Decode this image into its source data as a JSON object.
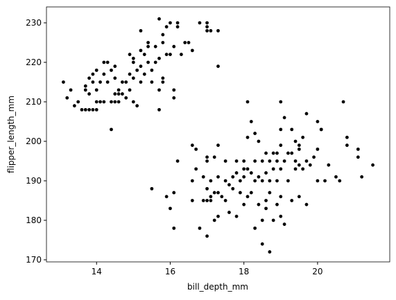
{
  "chart_data": {
    "type": "scatter",
    "xlabel": "bill_depth_mm",
    "ylabel": "flipper_length_mm",
    "color": "#000000",
    "x": [
      13.1,
      13.2,
      13.3,
      13.4,
      13.5,
      13.6,
      13.7,
      13.7,
      13.7,
      13.8,
      13.8,
      13.8,
      13.9,
      13.9,
      13.9,
      14.0,
      14.0,
      14.0,
      14.0,
      14.1,
      14.1,
      14.2,
      14.2,
      14.2,
      14.3,
      14.3,
      14.4,
      14.4,
      14.4,
      14.5,
      14.5,
      14.5,
      14.5,
      14.6,
      14.6,
      14.7,
      14.8,
      14.8,
      14.9,
      15.0,
      15.0,
      15.0,
      15.0,
      14.9,
      15.1,
      15.2,
      15.2,
      15.2,
      15.3,
      15.3,
      15.4,
      15.4,
      15.5,
      15.5,
      15.6,
      15.7,
      15.7,
      15.7,
      15.7,
      15.8,
      15.8,
      15.8,
      15.9,
      15.9,
      16.0,
      16.0,
      16.1,
      16.1,
      16.1,
      16.2,
      16.2,
      16.4,
      16.5,
      16.6,
      15.2,
      15.4,
      16.3,
      16.8,
      17.0,
      17.0,
      17.1,
      17.0,
      17.3,
      17.3,
      15.8,
      15.6,
      14.9,
      15.1,
      14.7,
      14.6,
      15.5,
      15.9,
      16.0,
      16.1,
      16.1,
      16.2,
      16.6,
      16.7,
      16.6,
      16.6,
      16.7,
      16.8,
      16.9,
      16.9,
      17.0,
      17.0,
      17.0,
      17.0,
      17.0,
      17.1,
      17.1,
      17.1,
      17.2,
      17.2,
      17.2,
      17.3,
      17.3,
      17.3,
      17.3,
      17.4,
      17.5,
      17.5,
      17.6,
      17.6,
      17.7,
      17.8,
      17.8,
      17.8,
      17.9,
      17.9,
      18.0,
      18.0,
      18.0,
      18.1,
      18.1,
      18.1,
      18.1,
      18.2,
      18.2,
      18.2,
      18.3,
      18.3,
      18.3,
      18.4,
      18.4,
      18.4,
      18.5,
      18.5,
      18.5,
      18.5,
      18.6,
      18.6,
      18.6,
      18.7,
      18.7,
      18.7,
      18.7,
      18.8,
      18.8,
      18.8,
      18.9,
      18.9,
      18.9,
      19.0,
      19.0,
      19.0,
      19.0,
      19.0,
      19.1,
      19.1,
      19.1,
      19.2,
      19.2,
      19.3,
      19.3,
      19.4,
      19.4,
      19.5,
      19.5,
      19.5,
      19.6,
      19.6,
      19.7,
      19.7,
      19.8,
      19.9,
      20.0,
      20.0,
      20.1,
      20.2,
      20.3,
      20.5,
      20.6,
      20.7,
      20.8,
      21.1,
      21.2,
      21.5,
      19.0,
      19.5,
      20.0,
      17.5,
      18.0,
      19.3,
      19.7,
      20.1,
      21.1,
      20.8,
      19.4,
      18.9,
      18.3,
      17.7,
      18.6
    ],
    "values": [
      215,
      211,
      213,
      209,
      210,
      208,
      208,
      214,
      213,
      208,
      212,
      216,
      208,
      215,
      217,
      208,
      210,
      213,
      218,
      210,
      215,
      210,
      220,
      217,
      215,
      220,
      210,
      218,
      203,
      210,
      212,
      219,
      216,
      210,
      213,
      212,
      211,
      215,
      213,
      210,
      216,
      221,
      220,
      222,
      209,
      215,
      219,
      223,
      217,
      222,
      220,
      224,
      215,
      218,
      220,
      221,
      208,
      213,
      231,
      215,
      216,
      225,
      229,
      222,
      222,
      230,
      224,
      211,
      213,
      229,
      230,
      225,
      225,
      223,
      228,
      225,
      222,
      230,
      230,
      229,
      228,
      228,
      228,
      219,
      227,
      224,
      217,
      218,
      215,
      212,
      188,
      186,
      183,
      178,
      187,
      195,
      199,
      198,
      185,
      190,
      193,
      178,
      185,
      191,
      176,
      185,
      188,
      195,
      196,
      185,
      190,
      186,
      180,
      187,
      196,
      181,
      187,
      191,
      199,
      186,
      190,
      185,
      189,
      182,
      191,
      192,
      181,
      195,
      187,
      190,
      184,
      193,
      195,
      186,
      193,
      201,
      210,
      187,
      192,
      205,
      178,
      190,
      195,
      184,
      191,
      200,
      174,
      180,
      190,
      195,
      185,
      192,
      197,
      172,
      187,
      190,
      195,
      180,
      193,
      197,
      184,
      190,
      197,
      181,
      186,
      193,
      199,
      203,
      179,
      195,
      206,
      197,
      190,
      197,
      185,
      193,
      200,
      186,
      194,
      198,
      193,
      201,
      184,
      195,
      194,
      196,
      190,
      205,
      203,
      190,
      194,
      191,
      190,
      210,
      201,
      198,
      191,
      194,
      210,
      199,
      198,
      195,
      191,
      203,
      207,
      203,
      196,
      199,
      195,
      195,
      202,
      188,
      183
    ],
    "xlim": [
      12.64,
      21.96
    ],
    "ylim": [
      169.47,
      234.03
    ],
    "xticks": [
      14,
      16,
      18,
      20
    ],
    "yticks": [
      170,
      180,
      190,
      200,
      210,
      220,
      230
    ]
  }
}
